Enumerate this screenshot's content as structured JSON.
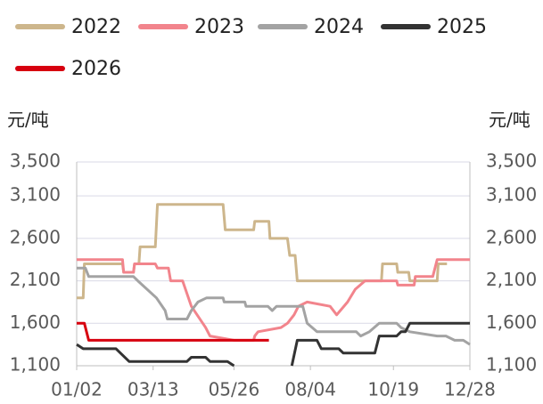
{
  "chart_data": {
    "type": "line",
    "y_label": "元/吨",
    "y2_label": "元/吨",
    "xlim": [
      2,
      362
    ],
    "xticks": [
      {
        "value": 2,
        "label": "01/02"
      },
      {
        "value": 72,
        "label": "03/13"
      },
      {
        "value": 146,
        "label": "05/26"
      },
      {
        "value": 216,
        "label": "08/04"
      },
      {
        "value": 292,
        "label": "10/19"
      },
      {
        "value": 362,
        "label": "12/28"
      }
    ],
    "ylim": [
      1100,
      3500
    ],
    "yticks": [
      {
        "value": 1100,
        "label": "1,100"
      },
      {
        "value": 1600,
        "label": "1,600"
      },
      {
        "value": 2100,
        "label": "2,100"
      },
      {
        "value": 2600,
        "label": "2,600"
      },
      {
        "value": 3100,
        "label": "3,100"
      },
      {
        "value": 3500,
        "label": "3,500"
      }
    ],
    "y2lim": [
      1100,
      3500
    ],
    "y2ticks": [
      {
        "value": 1100,
        "label": "1,100"
      },
      {
        "value": 1600,
        "label": "1,600"
      },
      {
        "value": 2100,
        "label": "2,100"
      },
      {
        "value": 2600,
        "label": "2,600"
      },
      {
        "value": 3100,
        "label": "3,100"
      },
      {
        "value": 3500,
        "label": "3,500"
      }
    ],
    "grid": true,
    "series": [
      {
        "name": "2022",
        "color": "#cdb68c",
        "x": [
          2,
          8,
          9,
          44,
          45,
          54,
          55,
          59,
          60,
          74,
          76,
          136,
          138,
          164,
          165,
          178,
          179,
          195,
          197,
          202,
          204,
          281,
          282,
          295,
          296,
          306,
          307,
          332,
          333,
          341
        ],
        "values": [
          1900,
          1900,
          2300,
          2300,
          2200,
          2200,
          2300,
          2300,
          2500,
          2500,
          3000,
          3000,
          2700,
          2700,
          2800,
          2800,
          2600,
          2600,
          2400,
          2400,
          2100,
          2100,
          2300,
          2300,
          2200,
          2200,
          2100,
          2100,
          2300,
          2300
        ]
      },
      {
        "name": "2023",
        "color": "#f2848c",
        "x": [
          2,
          44,
          45,
          54,
          55,
          74,
          76,
          86,
          88,
          99,
          107,
          120,
          124,
          146,
          164,
          165,
          168,
          189,
          195,
          201,
          205,
          213,
          234,
          240,
          250,
          257,
          266,
          295,
          296,
          311,
          312,
          328,
          332,
          362
        ],
        "values": [
          2350,
          2350,
          2200,
          2200,
          2300,
          2300,
          2250,
          2250,
          2100,
          2100,
          1800,
          1550,
          1450,
          1400,
          1400,
          1450,
          1500,
          1550,
          1600,
          1700,
          1800,
          1850,
          1800,
          1700,
          1850,
          2000,
          2100,
          2100,
          2050,
          2050,
          2150,
          2150,
          2350,
          2350
        ]
      },
      {
        "name": "2024",
        "color": "#a3a3a3",
        "x": [
          2,
          10,
          13,
          54,
          58,
          75,
          83,
          85,
          103,
          107,
          113,
          121,
          136,
          137,
          156,
          157,
          177,
          181,
          185,
          209,
          213,
          222,
          258,
          262,
          270,
          279,
          295,
          299,
          307,
          332,
          340,
          348,
          356,
          362
        ],
        "values": [
          2250,
          2250,
          2150,
          2150,
          2100,
          1900,
          1750,
          1650,
          1650,
          1750,
          1850,
          1900,
          1900,
          1850,
          1850,
          1800,
          1800,
          1750,
          1800,
          1800,
          1600,
          1500,
          1500,
          1450,
          1500,
          1600,
          1600,
          1550,
          1500,
          1450,
          1450,
          1400,
          1400,
          1350
        ]
      },
      {
        "name": "2025",
        "color": "#333333",
        "x": [
          2,
          8,
          38,
          42,
          50,
          103,
          107,
          120,
          124,
          140,
          146,
          170,
          199,
          204,
          222,
          226,
          242,
          246,
          275,
          279,
          295,
          299,
          303,
          307,
          362
        ],
        "values": [
          1350,
          1300,
          1300,
          1250,
          1150,
          1150,
          1200,
          1200,
          1150,
          1150,
          1100,
          null,
          1100,
          1400,
          1400,
          1300,
          1300,
          1250,
          1250,
          1450,
          1450,
          1500,
          1500,
          1600,
          1600
        ]
      },
      {
        "name": "2026",
        "color": "#d7000f",
        "x": [
          2,
          9,
          13,
          178
        ],
        "values": [
          1600,
          1600,
          1400,
          1400
        ]
      }
    ]
  }
}
